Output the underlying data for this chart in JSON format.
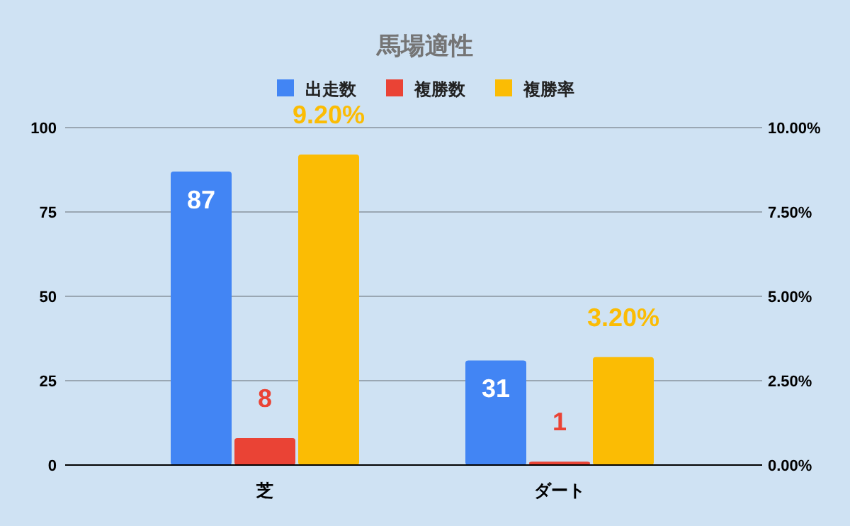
{
  "chart_data": {
    "type": "bar",
    "title": "馬場適性",
    "categories": [
      "芝",
      "ダート"
    ],
    "series": [
      {
        "name": "出走数",
        "color": "#4285f4",
        "values": [
          87,
          31
        ],
        "value_labels": [
          "87",
          "31"
        ]
      },
      {
        "name": "複勝数",
        "color": "#ea4335",
        "values": [
          8,
          1
        ],
        "value_labels": [
          "8",
          "1"
        ]
      },
      {
        "name": "複勝率",
        "color": "#fbbc04",
        "values": [
          9.2,
          3.2
        ],
        "axis": "y2",
        "value_labels": [
          "9.20%",
          "3.20%"
        ]
      }
    ],
    "ylim": [
      0,
      100
    ],
    "yticks": [
      0,
      25,
      50,
      75,
      100
    ],
    "y2lim": [
      0,
      10
    ],
    "y2ticks": [
      {
        "value": 0,
        "label": "0.00%"
      },
      {
        "value": 2.5,
        "label": "2.50%"
      },
      {
        "value": 5,
        "label": "5.00%"
      },
      {
        "value": 7.5,
        "label": "7.50%"
      },
      {
        "value": 10,
        "label": "10.00%"
      }
    ],
    "grid": "y",
    "legend": "top"
  }
}
